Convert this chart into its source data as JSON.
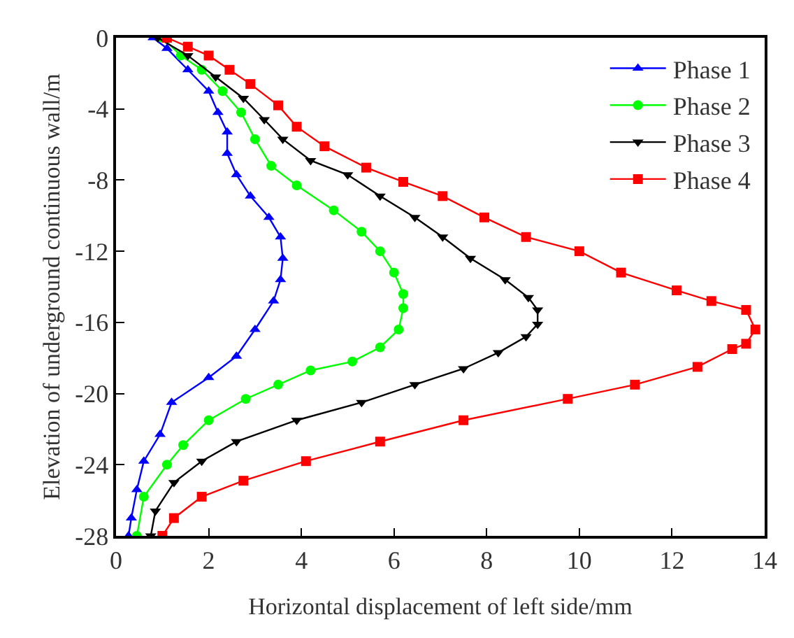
{
  "chart_data": {
    "type": "line",
    "xlabel": "Horizontal displacement of left side/mm",
    "ylabel": "Elevation of underground continuous wall/m",
    "xlim": [
      0,
      14
    ],
    "xticks": [
      0,
      2,
      4,
      6,
      8,
      10,
      12,
      14
    ],
    "ylim": [
      -28,
      0
    ],
    "yticks": [
      -28,
      -24,
      -20,
      -16,
      -12,
      -8,
      -4,
      0
    ],
    "legend": "top right",
    "line_style": "solid",
    "series": [
      {
        "name": "Phase 1",
        "color": "#0000ff",
        "marker": "triangle",
        "x": [
          0.8,
          1.1,
          1.55,
          2.0,
          2.2,
          2.4,
          2.4,
          2.6,
          2.9,
          3.3,
          3.55,
          3.6,
          3.55,
          3.4,
          3.0,
          2.6,
          2.0,
          1.2,
          0.95,
          0.6,
          0.45,
          0.33,
          0.27
        ],
        "values": [
          0,
          -0.6,
          -1.8,
          -3,
          -4.2,
          -5.3,
          -6.5,
          -7.7,
          -8.9,
          -10.1,
          -11.2,
          -12.4,
          -13.6,
          -14.8,
          -16.4,
          -17.9,
          -19.1,
          -20.5,
          -22.3,
          -23.8,
          -25.4,
          -27,
          -28
        ]
      },
      {
        "name": "Phase 2",
        "color": "#00ff00",
        "marker": "circle",
        "x": [
          1.0,
          1.4,
          1.85,
          2.3,
          2.7,
          3.0,
          3.35,
          3.9,
          4.7,
          5.3,
          5.7,
          6.0,
          6.2,
          6.2,
          6.1,
          5.7,
          5.1,
          4.2,
          3.5,
          2.8,
          2.0,
          1.45,
          1.1,
          0.6,
          0.45
        ],
        "values": [
          0,
          -1,
          -1.8,
          -3,
          -4.2,
          -5.7,
          -7.2,
          -8.3,
          -9.7,
          -10.9,
          -12,
          -13.2,
          -14.4,
          -15.2,
          -16.4,
          -17.4,
          -18.2,
          -18.7,
          -19.5,
          -20.3,
          -21.5,
          -22.9,
          -24,
          -25.8,
          -28
        ]
      },
      {
        "name": "Phase 3",
        "color": "#000000",
        "marker": "triangle-down",
        "x": [
          0.9,
          1.55,
          2.15,
          2.75,
          3.2,
          3.6,
          4.2,
          5.0,
          5.7,
          6.45,
          7.05,
          7.65,
          8.4,
          8.9,
          9.1,
          9.1,
          8.85,
          8.25,
          7.5,
          6.45,
          5.3,
          3.9,
          2.6,
          1.85,
          1.25,
          0.85,
          0.75
        ],
        "values": [
          0,
          -1,
          -2.2,
          -3.4,
          -4.6,
          -5.7,
          -6.9,
          -7.7,
          -8.9,
          -10.1,
          -11.2,
          -12.4,
          -13.6,
          -14.6,
          -15.3,
          -16.1,
          -16.8,
          -17.7,
          -18.6,
          -19.5,
          -20.5,
          -21.5,
          -22.7,
          -23.8,
          -25,
          -26.6,
          -28
        ]
      },
      {
        "name": "Phase 4",
        "color": "#ff0000",
        "marker": "square",
        "x": [
          1.1,
          1.55,
          2.0,
          2.45,
          2.9,
          3.5,
          3.9,
          4.5,
          5.4,
          6.2,
          7.05,
          7.95,
          8.85,
          10.0,
          10.9,
          12.1,
          12.85,
          13.6,
          13.8,
          13.6,
          13.3,
          12.55,
          11.2,
          9.75,
          7.5,
          5.7,
          4.1,
          2.75,
          1.85,
          1.25,
          1.0
        ],
        "values": [
          0,
          -0.5,
          -1,
          -1.8,
          -2.6,
          -3.8,
          -5,
          -6.1,
          -7.3,
          -8.1,
          -8.9,
          -10.1,
          -11.2,
          -12,
          -13.2,
          -14.2,
          -14.8,
          -15.3,
          -16.4,
          -17.2,
          -17.5,
          -18.5,
          -19.5,
          -20.3,
          -21.5,
          -22.7,
          -23.8,
          -24.9,
          -25.8,
          -27,
          -28
        ]
      }
    ]
  }
}
